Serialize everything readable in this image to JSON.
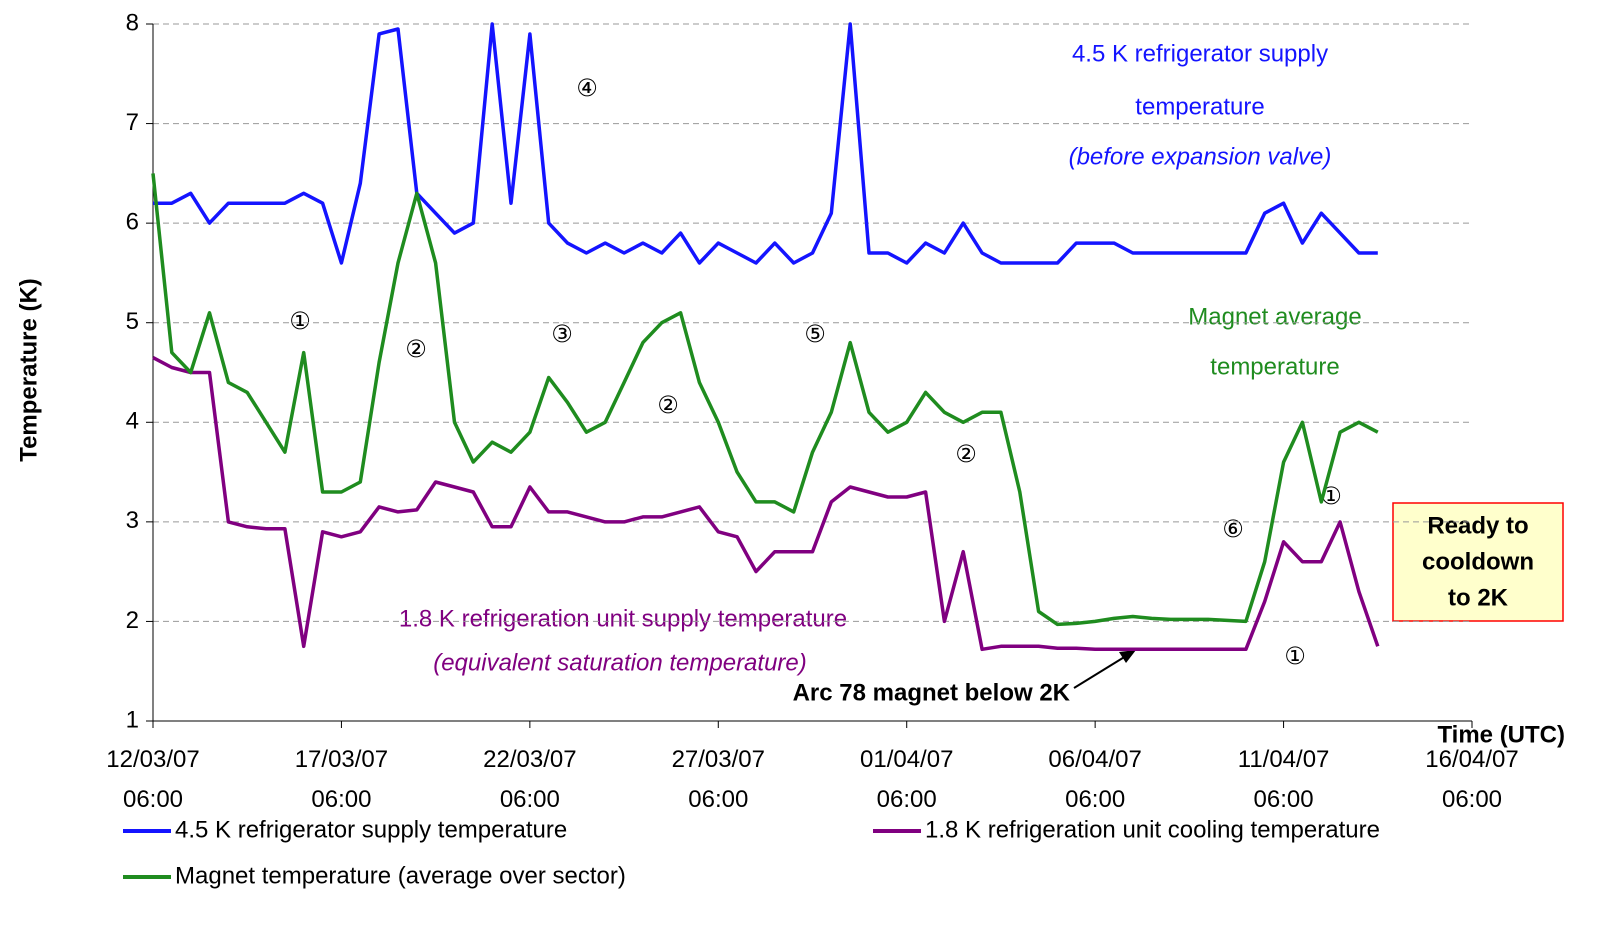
{
  "chart_data": {
    "type": "line",
    "y_label": "Temperature (K)",
    "x_label": "Time (UTC)",
    "ylim": [
      1,
      8
    ],
    "yticks": [
      1,
      2,
      3,
      4,
      5,
      6,
      7,
      8
    ],
    "grid": true,
    "xlim": [
      "2007-03-12T06:00",
      "2007-04-16T06:00"
    ],
    "xticks": [
      {
        "value": "2007-03-12T06:00",
        "label": "12/03/07 06:00"
      },
      {
        "value": "2007-03-17T06:00",
        "label": "17/03/07 06:00"
      },
      {
        "value": "2007-03-22T06:00",
        "label": "22/03/07 06:00"
      },
      {
        "value": "2007-03-27T06:00",
        "label": "27/03/07 06:00"
      },
      {
        "value": "2007-04-01T06:00",
        "label": "01/04/07 06:00"
      },
      {
        "value": "2007-04-06T06:00",
        "label": "06/04/07 06:00"
      },
      {
        "value": "2007-04-11T06:00",
        "label": "11/04/07 06:00"
      },
      {
        "value": "2007-04-16T06:00",
        "label": "16/04/07 06:00"
      }
    ],
    "x": [
      "2007-03-12T06:00",
      "2007-03-12T18:00",
      "2007-03-13T06:00",
      "2007-03-13T18:00",
      "2007-03-14T06:00",
      "2007-03-14T18:00",
      "2007-03-15T06:00",
      "2007-03-15T18:00",
      "2007-03-16T06:00",
      "2007-03-16T18:00",
      "2007-03-17T06:00",
      "2007-03-17T18:00",
      "2007-03-18T06:00",
      "2007-03-18T18:00",
      "2007-03-19T06:00",
      "2007-03-19T18:00",
      "2007-03-20T06:00",
      "2007-03-20T18:00",
      "2007-03-21T06:00",
      "2007-03-21T18:00",
      "2007-03-22T06:00",
      "2007-03-22T18:00",
      "2007-03-23T06:00",
      "2007-03-23T18:00",
      "2007-03-24T06:00",
      "2007-03-24T18:00",
      "2007-03-25T06:00",
      "2007-03-25T18:00",
      "2007-03-26T06:00",
      "2007-03-26T18:00",
      "2007-03-27T06:00",
      "2007-03-27T18:00",
      "2007-03-28T06:00",
      "2007-03-28T18:00",
      "2007-03-29T06:00",
      "2007-03-29T18:00",
      "2007-03-30T06:00",
      "2007-03-30T18:00",
      "2007-03-31T06:00",
      "2007-03-31T18:00",
      "2007-04-01T06:00",
      "2007-04-01T18:00",
      "2007-04-02T06:00",
      "2007-04-02T18:00",
      "2007-04-03T06:00",
      "2007-04-03T18:00",
      "2007-04-04T06:00",
      "2007-04-04T18:00",
      "2007-04-05T06:00",
      "2007-04-05T18:00",
      "2007-04-06T06:00",
      "2007-04-06T18:00",
      "2007-04-07T06:00",
      "2007-04-07T18:00",
      "2007-04-08T06:00",
      "2007-04-08T18:00",
      "2007-04-09T06:00",
      "2007-04-09T18:00",
      "2007-04-10T06:00",
      "2007-04-10T18:00",
      "2007-04-11T06:00",
      "2007-04-11T18:00",
      "2007-04-12T06:00",
      "2007-04-12T18:00",
      "2007-04-13T06:00",
      "2007-04-13T18:00"
    ],
    "series": [
      {
        "name": "4.5 K refrigerator supply temperature",
        "color": "#1414ff",
        "values": [
          6.2,
          6.2,
          6.3,
          6.0,
          6.2,
          6.2,
          6.2,
          6.2,
          6.3,
          6.2,
          5.6,
          6.4,
          7.9,
          7.95,
          6.3,
          6.1,
          5.9,
          6.0,
          8.0,
          6.2,
          7.9,
          6.0,
          5.8,
          5.7,
          5.8,
          5.7,
          5.8,
          5.7,
          5.9,
          5.6,
          5.8,
          5.7,
          5.6,
          5.8,
          5.6,
          5.7,
          6.1,
          8.0,
          5.7,
          5.7,
          5.6,
          5.8,
          5.7,
          6.0,
          5.7,
          5.6,
          5.6,
          5.6,
          5.6,
          5.8,
          5.8,
          5.8,
          5.7,
          5.7,
          5.7,
          5.7,
          5.7,
          5.7,
          5.7,
          6.1,
          6.2,
          5.8,
          6.1,
          5.9,
          5.7,
          5.7
        ]
      },
      {
        "name": "1.8 K refrigeration unit cooling temperature",
        "color": "#800080",
        "values": [
          4.65,
          4.55,
          4.5,
          4.5,
          3.0,
          2.95,
          2.93,
          2.93,
          1.75,
          2.9,
          2.85,
          2.9,
          3.15,
          3.1,
          3.12,
          3.4,
          3.35,
          3.3,
          2.95,
          2.95,
          3.35,
          3.1,
          3.1,
          3.05,
          3.0,
          3.0,
          3.05,
          3.05,
          3.1,
          3.15,
          2.9,
          2.85,
          2.5,
          2.7,
          2.7,
          2.7,
          3.2,
          3.35,
          3.3,
          3.25,
          3.25,
          3.3,
          2.0,
          2.7,
          1.72,
          1.75,
          1.75,
          1.75,
          1.73,
          1.73,
          1.72,
          1.72,
          1.72,
          1.72,
          1.72,
          1.72,
          1.72,
          1.72,
          1.72,
          2.2,
          2.8,
          2.6,
          2.6,
          3.0,
          2.3,
          1.75
        ]
      },
      {
        "name": "Magnet temperature (average over sector)",
        "color": "#1f8c1f",
        "values": [
          6.5,
          4.7,
          4.5,
          5.1,
          4.4,
          4.3,
          4.0,
          3.7,
          4.7,
          3.3,
          3.3,
          3.4,
          4.6,
          5.6,
          6.3,
          5.6,
          4.0,
          3.6,
          3.8,
          3.7,
          3.9,
          4.45,
          4.2,
          3.9,
          4.0,
          4.4,
          4.8,
          5.0,
          5.1,
          4.4,
          4.0,
          3.5,
          3.2,
          3.2,
          3.1,
          3.7,
          4.1,
          4.8,
          4.1,
          3.9,
          4.0,
          4.3,
          4.1,
          4.0,
          4.1,
          4.1,
          3.3,
          2.1,
          1.97,
          1.98,
          2.0,
          2.03,
          2.05,
          2.03,
          2.02,
          2.02,
          2.02,
          2.01,
          2.0,
          2.6,
          3.6,
          4.0,
          3.2,
          3.9,
          4.0,
          3.9
        ]
      }
    ],
    "annotations": [
      "4.5 K refrigerator supply",
      "temperature",
      "(before expansion valve)",
      "Magnet average",
      "temperature",
      "1.8 K refrigeration unit supply temperature",
      "(equivalent saturation temperature)",
      "Arc 78 magnet below 2K",
      "Ready to",
      "cooldown",
      "to 2K",
      "①",
      "②",
      "③",
      "④",
      "⑤",
      "②",
      "②",
      "⑥",
      "①",
      "①"
    ]
  }
}
